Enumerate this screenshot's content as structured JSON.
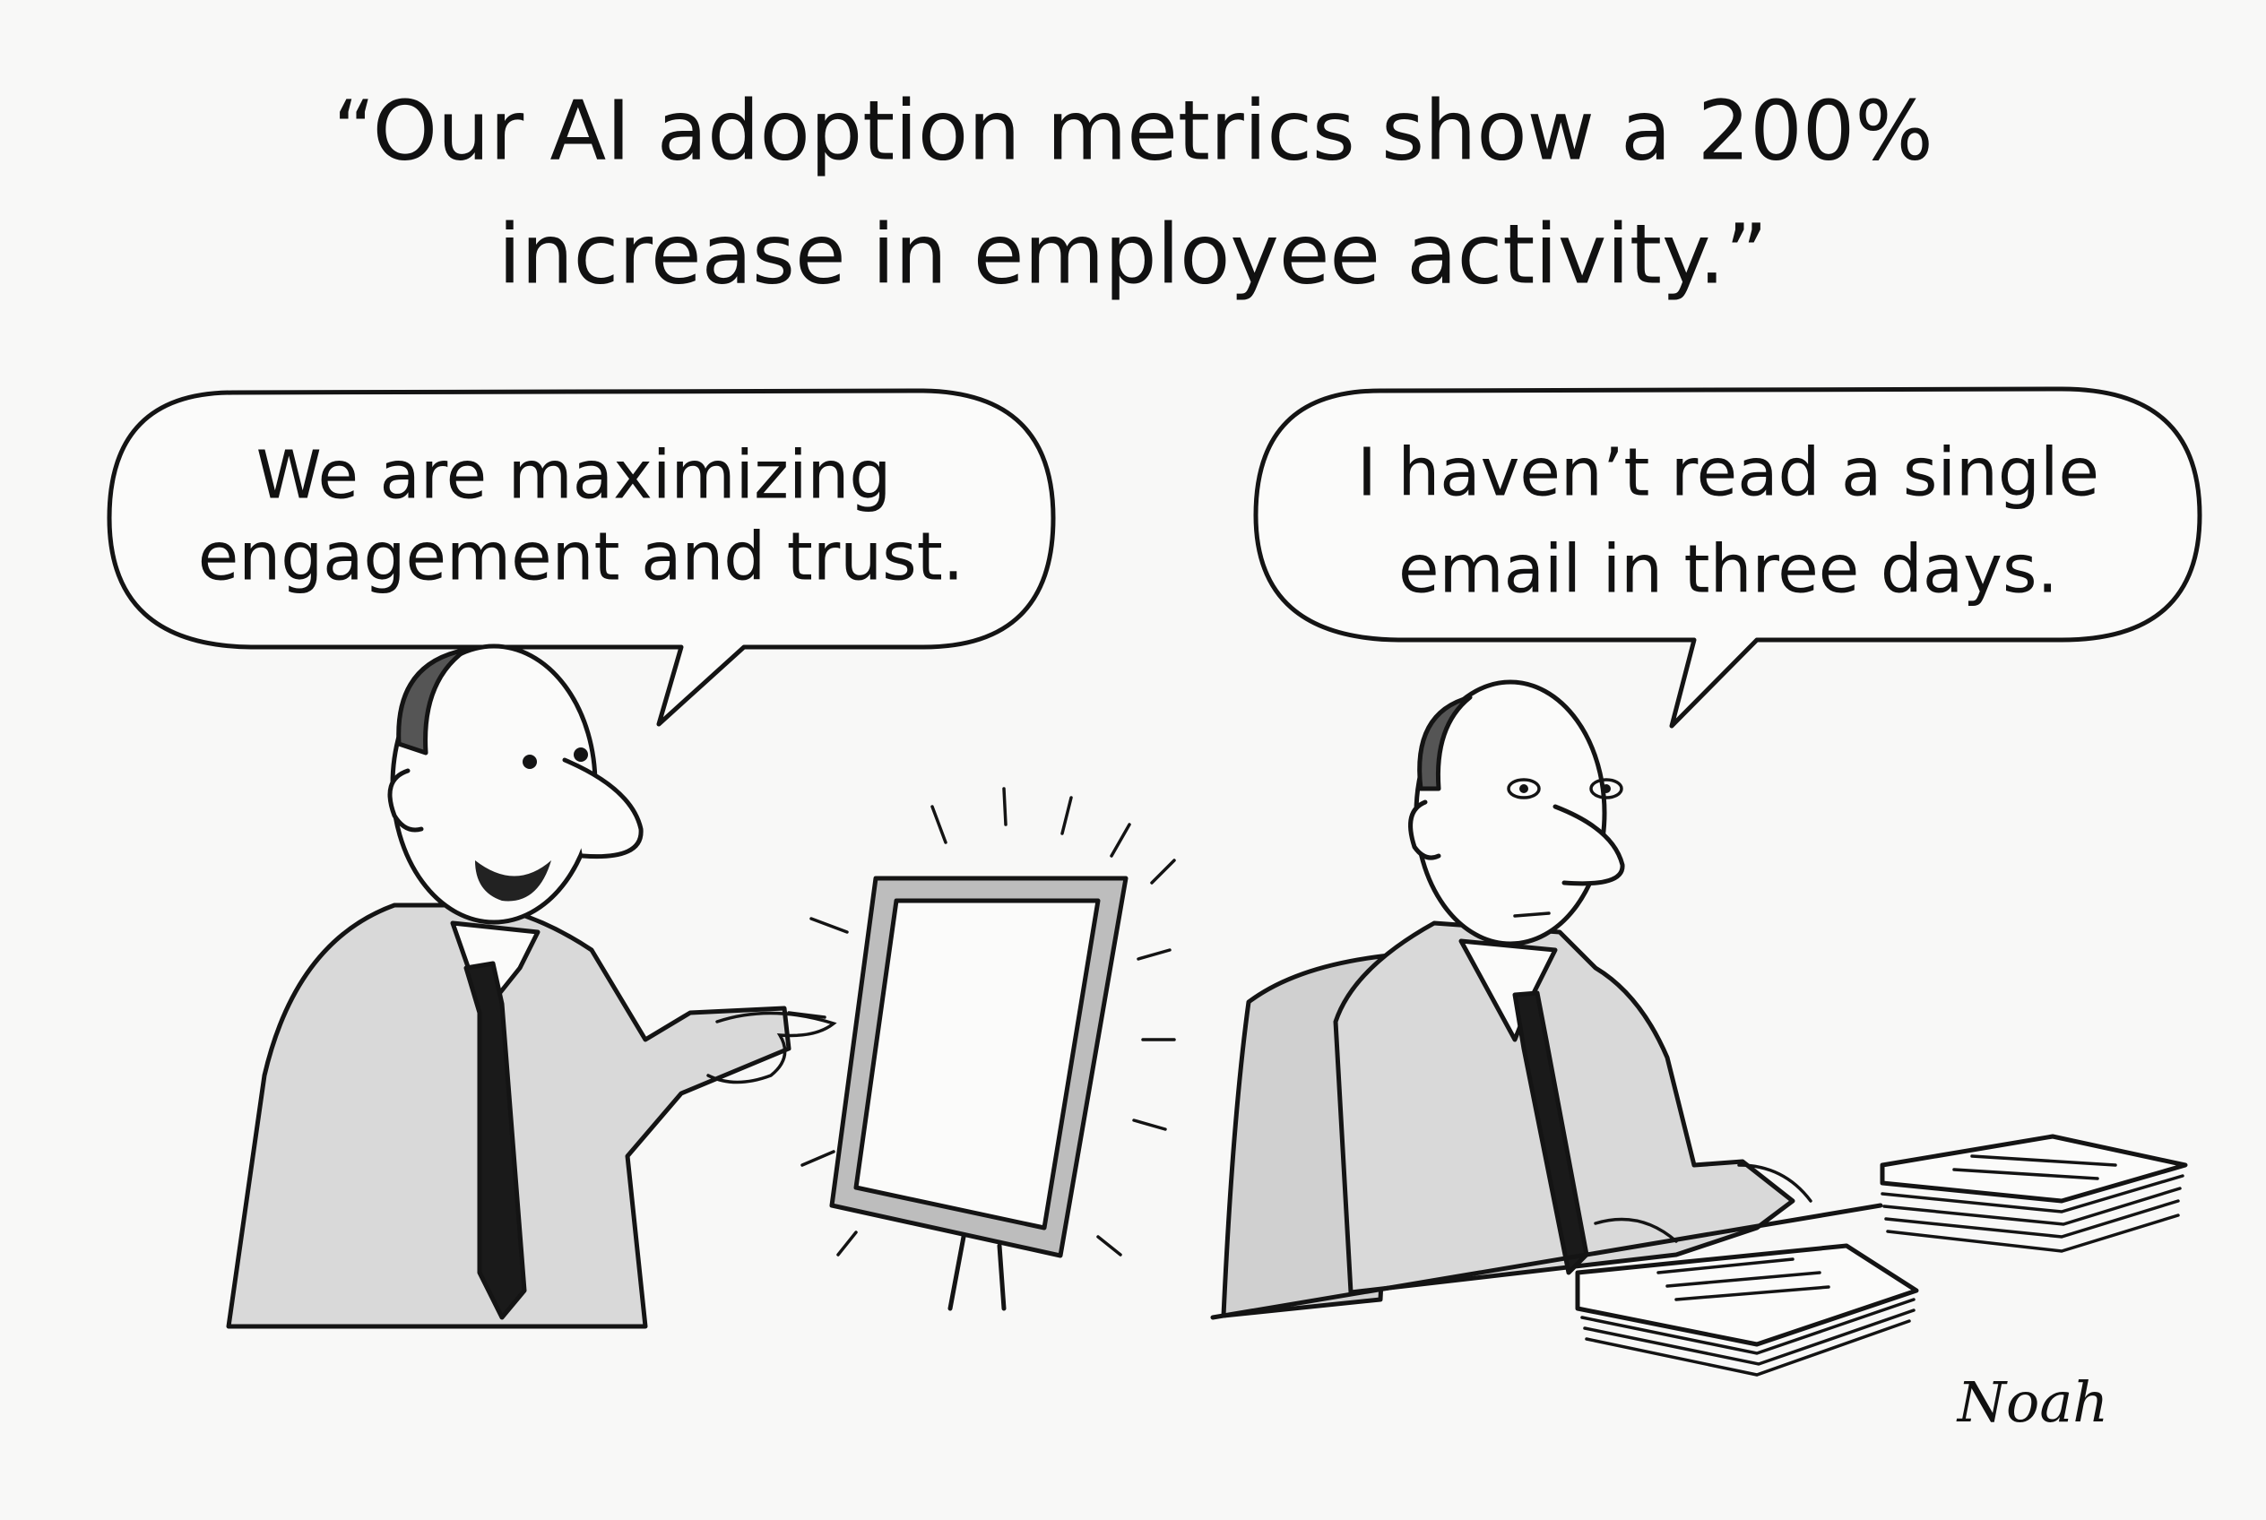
{
  "caption": {
    "lines": [
      "“Our AI adoption metrics show a 200%",
      "increase in employee activity.”"
    ]
  },
  "left_bubble": {
    "lines": [
      "We are maximizing",
      "engagement and trust."
    ]
  },
  "right_bubble": {
    "lines": [
      "I haven’t read a single",
      "email in three days."
    ]
  },
  "signature": "Noah"
}
